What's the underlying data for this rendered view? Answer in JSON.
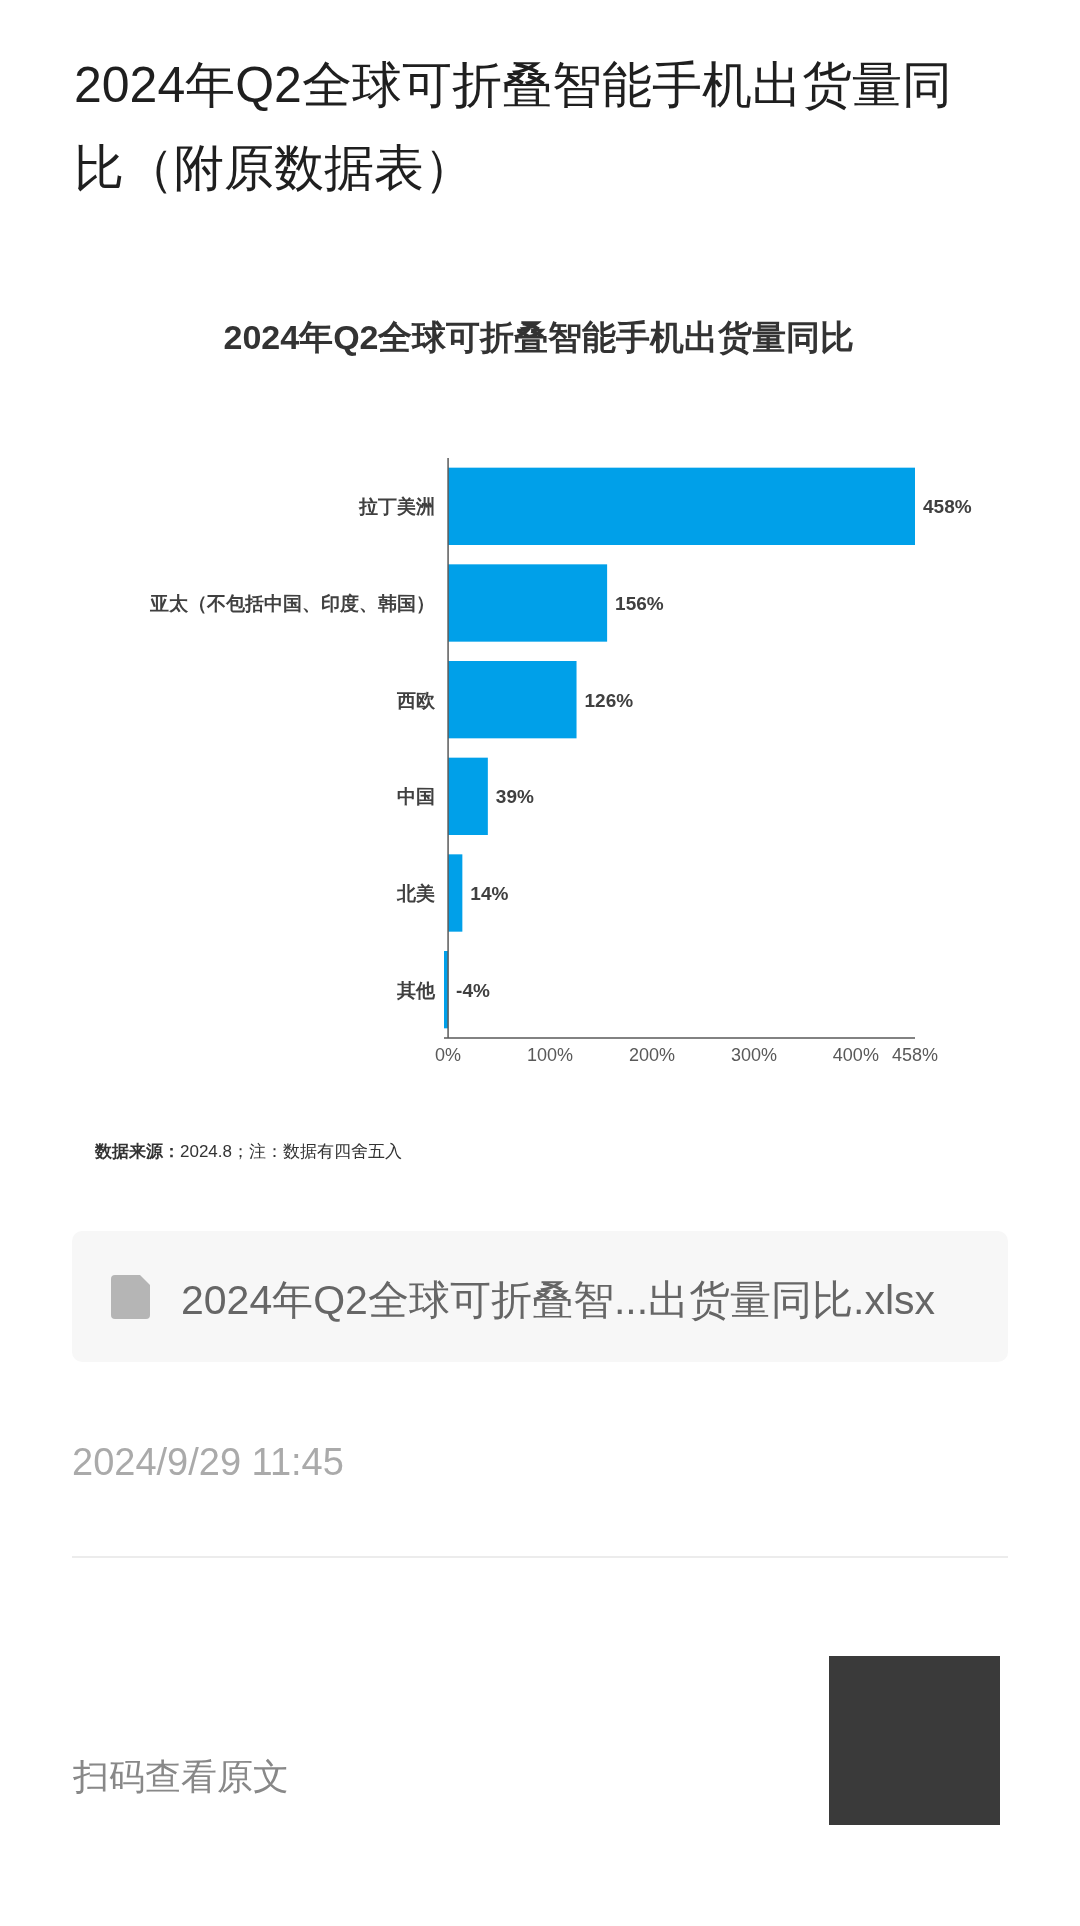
{
  "chart_data": {
    "type": "bar",
    "orientation": "horizontal",
    "title": "2024年Q2全球可折叠智能手机出货量同比（附原数据表）",
    "subtitle": "2024年Q2全球可折叠智能手机出货量同比",
    "categories": [
      "拉丁美洲",
      "亚太（不包括中国、印度、韩国）",
      "西欧",
      "中国",
      "北美",
      "其他"
    ],
    "values": [
      458,
      156,
      126,
      39,
      14,
      -4
    ],
    "value_labels": [
      "458%",
      "156%",
      "126%",
      "39%",
      "14%",
      "-4%"
    ],
    "color": "#00a0e9",
    "xlim": [
      -4,
      458
    ],
    "xticks": [
      {
        "value": 0,
        "label": "0%"
      },
      {
        "value": 100,
        "label": "100%"
      },
      {
        "value": 200,
        "label": "200%"
      },
      {
        "value": 300,
        "label": "300%"
      },
      {
        "value": 400,
        "label": "400%"
      },
      {
        "value": 458,
        "label": "458%"
      }
    ],
    "annotations": [
      "**数据来源：**2024.8；注：数据有四舍五入",
      "2024年Q2全球可折叠智...出货量同比.xlsx",
      "2024/9/29 11:45",
      "扫码查看原文"
    ]
  }
}
